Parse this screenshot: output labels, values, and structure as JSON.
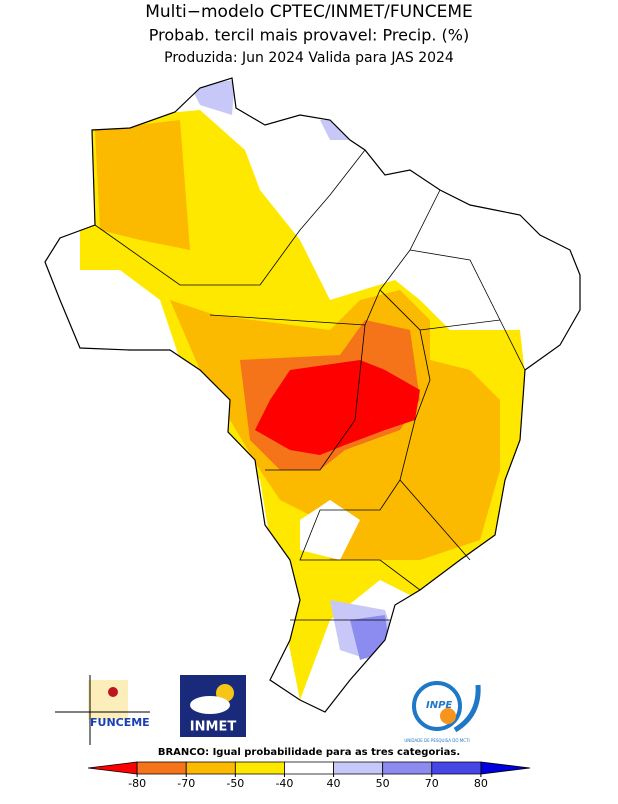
{
  "header": {
    "title": "Multi−modelo CPTEC/INMET/FUNCEME",
    "subtitle": "Probab. tercil mais provavel: Precip. (%)",
    "period": "Produzida: Jun 2024  Valida para JAS 2024"
  },
  "logos": {
    "funceme": "FUNCEME",
    "inmet": "INMET",
    "inpe": "INPE",
    "inpe_caption": "UNIDADE DE PESQUISA DO MCTI"
  },
  "note": "BRANCO: Igual probabilidade para as tres categorias.",
  "colorbar": {
    "ticks": [
      -80,
      -70,
      -50,
      -40,
      40,
      50,
      70,
      80
    ],
    "colors": [
      "#ff0000",
      "#f5741a",
      "#fbb900",
      "#ffe800",
      "#ffffff",
      "#c8c8f8",
      "#8c8cf0",
      "#4646e6",
      "#0000dc"
    ]
  }
}
